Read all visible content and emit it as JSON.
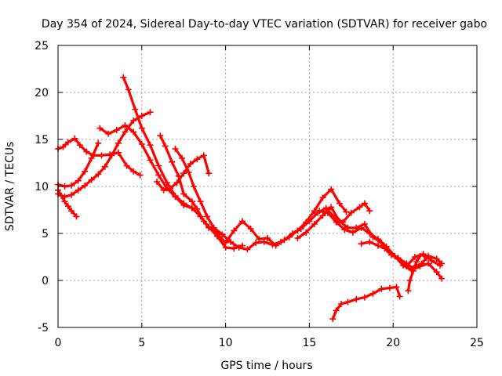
{
  "chart_data": {
    "type": "scatter",
    "title": "Day 354 of 2024, Sidereal Day-to-day VTEC variation (SDTVAR) for receiver gabo",
    "xlabel": "GPS time / hours",
    "ylabel": "SDTVAR / TECUs",
    "xlim": [
      0,
      25
    ],
    "ylim": [
      -5,
      25
    ],
    "xticks": [
      "0",
      "5",
      "10",
      "15",
      "20",
      "25"
    ],
    "yticks": [
      "-5",
      "0",
      "5",
      "10",
      "15",
      "20",
      "25"
    ],
    "grid": true,
    "marker": "plus",
    "color": "#ff0000",
    "series": [
      {
        "x": [
          0.0,
          0.3,
          0.6,
          1.0,
          1.3,
          1.7,
          2.1,
          2.6,
          3.1,
          3.6,
          4.1,
          4.5,
          4.9
        ],
        "y": [
          14.0,
          14.2,
          14.7,
          15.1,
          14.4,
          13.7,
          13.3,
          13.3,
          13.4,
          13.6,
          12.2,
          11.6,
          11.2
        ]
      },
      {
        "x": [
          0.0,
          0.2,
          0.4,
          0.6,
          0.8,
          1.1
        ],
        "y": [
          9.6,
          9.0,
          8.4,
          7.9,
          7.4,
          6.8
        ]
      },
      {
        "x": [
          0.0,
          0.4,
          0.8,
          1.2,
          1.6,
          2.0,
          2.4
        ],
        "y": [
          10.2,
          10.0,
          10.1,
          10.6,
          11.6,
          13.0,
          14.6
        ]
      },
      {
        "x": [
          0.0,
          0.4,
          0.8,
          1.2,
          1.6,
          2.0,
          2.4,
          2.8,
          3.2,
          3.6,
          4.0,
          4.5,
          5.0,
          5.5
        ],
        "y": [
          9.2,
          8.9,
          9.1,
          9.6,
          10.1,
          10.7,
          11.3,
          12.1,
          13.3,
          14.6,
          15.8,
          17.0,
          17.5,
          17.9
        ]
      },
      {
        "x": [
          2.5,
          3.0,
          3.5,
          4.0,
          4.5,
          5.0,
          5.5,
          6.0,
          6.5,
          7.0,
          7.5,
          8.0
        ],
        "y": [
          16.2,
          15.6,
          16.0,
          16.5,
          15.8,
          14.5,
          12.8,
          11.2,
          9.8,
          8.9,
          8.0,
          7.7
        ]
      },
      {
        "x": [
          3.9,
          4.2,
          4.6,
          5.0,
          5.5,
          6.0,
          6.5,
          7.0,
          7.5,
          8.0,
          8.5,
          9.0,
          9.5,
          10.0,
          10.5,
          11.0
        ],
        "y": [
          21.6,
          20.3,
          18.2,
          16.2,
          14.4,
          12.2,
          10.4,
          9.0,
          8.2,
          7.7,
          6.8,
          5.7,
          4.7,
          3.5,
          3.4,
          3.7
        ]
      },
      {
        "x": [
          6.1,
          6.4,
          6.8,
          7.2,
          7.5,
          8.0,
          8.3,
          8.7,
          9.0,
          9.5
        ],
        "y": [
          15.4,
          14.3,
          12.6,
          11.1,
          9.2,
          8.4,
          7.6,
          6.3,
          5.6,
          5.1
        ]
      },
      {
        "x": [
          5.9,
          6.3,
          6.7,
          7.1,
          7.5,
          7.9,
          8.3,
          8.7,
          9.0
        ],
        "y": [
          10.5,
          9.6,
          9.8,
          10.4,
          11.4,
          12.4,
          12.9,
          13.3,
          11.4
        ]
      },
      {
        "x": [
          7.0,
          7.4,
          7.8,
          8.1,
          8.5,
          8.9,
          9.3,
          9.8,
          10.3,
          10.8,
          11.3,
          11.8,
          12.3,
          12.8,
          13.3,
          13.8,
          14.3,
          14.8,
          15.3,
          15.8,
          16.3,
          16.8,
          17.2
        ],
        "y": [
          14.0,
          13.0,
          11.5,
          10.0,
          8.4,
          6.8,
          5.6,
          4.9,
          4.1,
          3.5,
          3.3,
          4.0,
          4.1,
          3.8,
          4.1,
          4.6,
          5.3,
          6.2,
          7.4,
          8.8,
          9.7,
          8.2,
          7.3
        ]
      },
      {
        "x": [
          9.5,
          10.0,
          10.5,
          11.0,
          11.5,
          12.0,
          12.5,
          13.0,
          13.5,
          14.0,
          14.5,
          15.0,
          15.5,
          16.0,
          16.5,
          17.0,
          17.5,
          18.0,
          18.3,
          18.6
        ],
        "y": [
          5.0,
          4.0,
          5.3,
          6.3,
          5.5,
          4.4,
          4.5,
          3.7,
          4.3,
          5.0,
          5.5,
          6.3,
          7.2,
          7.7,
          6.7,
          6.2,
          7.2,
          7.8,
          8.2,
          7.4
        ]
      },
      {
        "x": [
          14.3,
          14.8,
          15.3,
          15.8,
          16.3,
          16.8,
          17.3,
          17.8,
          18.3,
          18.8,
          19.3,
          19.8,
          20.3,
          20.8,
          21.3,
          21.8,
          22.3,
          22.8
        ],
        "y": [
          4.5,
          5.1,
          6.0,
          6.9,
          7.8,
          6.3,
          5.6,
          5.6,
          6.0,
          4.6,
          4.0,
          3.0,
          2.3,
          1.5,
          2.5,
          2.8,
          2.1,
          1.6
        ]
      },
      {
        "x": [
          15.6,
          16.1,
          16.6,
          17.1,
          17.6,
          18.1,
          18.6,
          19.1,
          19.6,
          20.1,
          20.6,
          21.1,
          21.6,
          22.1,
          22.6,
          22.9
        ],
        "y": [
          7.4,
          7.2,
          6.2,
          5.4,
          5.1,
          5.6,
          5.0,
          4.4,
          3.6,
          2.6,
          1.6,
          1.1,
          1.5,
          1.8,
          0.9,
          0.2
        ]
      },
      {
        "x": [
          18.1,
          18.6,
          19.1,
          19.5,
          19.9,
          20.3,
          20.8,
          21.2,
          21.7,
          22.1,
          22.6,
          22.9
        ],
        "y": [
          3.9,
          4.1,
          3.7,
          3.4,
          2.7,
          2.4,
          1.8,
          1.3,
          1.8,
          2.6,
          2.3,
          1.8
        ]
      },
      {
        "x": [
          20.9,
          21.0,
          21.2,
          21.4,
          21.6,
          21.8,
          22.0
        ],
        "y": [
          -1.1,
          0.0,
          1.0,
          2.0,
          2.6,
          2.8,
          2.4
        ]
      },
      {
        "x": [
          16.4,
          16.6,
          16.9,
          17.3,
          17.8,
          18.3,
          18.8,
          19.3,
          19.8,
          20.2,
          20.4
        ],
        "y": [
          -4.1,
          -3.2,
          -2.5,
          -2.3,
          -2.0,
          -1.8,
          -1.4,
          -0.9,
          -0.8,
          -0.7,
          -1.7
        ]
      }
    ]
  }
}
